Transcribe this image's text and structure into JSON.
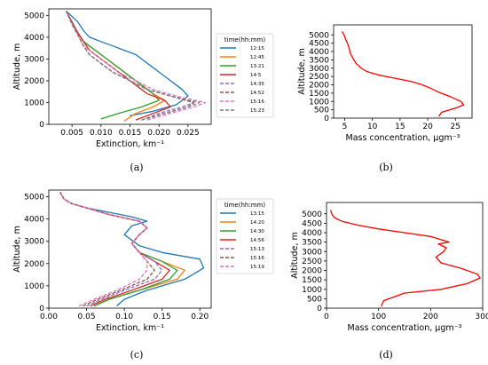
{
  "chart_data": [
    {
      "id": "a",
      "type": "line",
      "caption": "(a)",
      "xlabel": "Extinction, km⁻¹",
      "ylabel": "Altitude, m",
      "xlim": [
        0.001,
        0.029
      ],
      "ylim": [
        0,
        5300
      ],
      "xticks": [
        0.005,
        0.01,
        0.015,
        0.02,
        0.025
      ],
      "xtick_labels": [
        "0.005",
        "0.010",
        "0.015",
        "0.020",
        "0.025"
      ],
      "yticks": [
        0,
        1000,
        2000,
        3000,
        4000,
        5000
      ],
      "ytick_labels": [
        "0",
        "1000",
        "2000",
        "3000",
        "4000",
        "5000"
      ],
      "grid": false,
      "legend_title": "time(hh:mm)",
      "legend_placement": "right-outside",
      "series": [
        {
          "name": "12:15",
          "color": "#1f77b4",
          "dash": "solid",
          "x": [
            0.015,
            0.019,
            0.023,
            0.024,
            0.025,
            0.024,
            0.023,
            0.022,
            0.021,
            0.02,
            0.019,
            0.018,
            0.017,
            0.016,
            0.014,
            0.012,
            0.01,
            0.008,
            0.007,
            0.006,
            0.004
          ],
          "y": [
            400,
            600,
            900,
            1100,
            1300,
            1600,
            1800,
            2000,
            2200,
            2400,
            2600,
            2800,
            3000,
            3200,
            3400,
            3600,
            3800,
            4000,
            4300,
            4700,
            5200
          ]
        },
        {
          "name": "12:45",
          "color": "#ff7f0e",
          "dash": "solid",
          "x": [
            0.014,
            0.016,
            0.019,
            0.021,
            0.019,
            0.017,
            0.015,
            0.013,
            0.011,
            0.009,
            0.007,
            0.006,
            0.005,
            0.004
          ],
          "y": [
            150,
            500,
            800,
            1100,
            1400,
            1800,
            2200,
            2600,
            3000,
            3400,
            3800,
            4200,
            4700,
            5200
          ]
        },
        {
          "name": "13:21",
          "color": "#2ca02c",
          "dash": "solid",
          "x": [
            0.01,
            0.013,
            0.017,
            0.02,
            0.019,
            0.017,
            0.015,
            0.013,
            0.011,
            0.009,
            0.007,
            0.006,
            0.005,
            0.004
          ],
          "y": [
            250,
            500,
            800,
            1100,
            1400,
            1800,
            2200,
            2600,
            3000,
            3400,
            3800,
            4200,
            4700,
            5200
          ]
        },
        {
          "name": "14:5",
          "color": "#d62728",
          "dash": "solid",
          "x": [
            0.016,
            0.019,
            0.022,
            0.021,
            0.018,
            0.016,
            0.014,
            0.012,
            0.01,
            0.008,
            0.007,
            0.006,
            0.005,
            0.004
          ],
          "y": [
            200,
            500,
            800,
            1100,
            1400,
            1800,
            2200,
            2600,
            3000,
            3400,
            3800,
            4200,
            4700,
            5200
          ]
        },
        {
          "name": "14:35",
          "color": "#9467bd",
          "dash": "dashed",
          "x": [
            0.017,
            0.02,
            0.024,
            0.026,
            0.022,
            0.018,
            0.015,
            0.012,
            0.01,
            0.008,
            0.007,
            0.006,
            0.005,
            0.004
          ],
          "y": [
            200,
            500,
            800,
            1000,
            1300,
            1600,
            2000,
            2400,
            2800,
            3200,
            3600,
            4100,
            4600,
            5200
          ]
        },
        {
          "name": "14:52",
          "color": "#8c564b",
          "dash": "dashed",
          "x": [
            0.017,
            0.021,
            0.025,
            0.026,
            0.022,
            0.018,
            0.015,
            0.012,
            0.01,
            0.008,
            0.007,
            0.006,
            0.005,
            0.004
          ],
          "y": [
            200,
            500,
            800,
            1000,
            1300,
            1600,
            2000,
            2400,
            2800,
            3200,
            3600,
            4100,
            4600,
            5200
          ]
        },
        {
          "name": "15:16",
          "color": "#e377c2",
          "dash": "dashed",
          "x": [
            0.018,
            0.022,
            0.026,
            0.028,
            0.023,
            0.019,
            0.016,
            0.013,
            0.011,
            0.009,
            0.007,
            0.006,
            0.005,
            0.004
          ],
          "y": [
            200,
            500,
            800,
            1000,
            1300,
            1600,
            2000,
            2400,
            2800,
            3200,
            3600,
            4100,
            4600,
            5200
          ]
        },
        {
          "name": "15:23",
          "color": "#7f7f7f",
          "dash": "dashed",
          "x": [
            0.017,
            0.021,
            0.025,
            0.027,
            0.022,
            0.018,
            0.015,
            0.012,
            0.01,
            0.008,
            0.007,
            0.006,
            0.005,
            0.004
          ],
          "y": [
            200,
            500,
            800,
            1000,
            1300,
            1600,
            2000,
            2400,
            2800,
            3200,
            3600,
            4100,
            4600,
            5200
          ]
        }
      ]
    },
    {
      "id": "b",
      "type": "line",
      "caption": "(b)",
      "xlabel": "Mass concentration, μgm⁻³",
      "ylabel": "Altitude, m",
      "xlim": [
        3,
        28
      ],
      "ylim": [
        0,
        5600
      ],
      "xticks": [
        5,
        10,
        15,
        20,
        25
      ],
      "xtick_labels": [
        "5",
        "10",
        "15",
        "20",
        "25"
      ],
      "yticks": [
        0,
        500,
        1000,
        1500,
        2000,
        2500,
        3000,
        3500,
        4000,
        4500,
        5000
      ],
      "ytick_labels": [
        "0",
        "500",
        "1000",
        "1500",
        "2000",
        "2500",
        "3000",
        "3500",
        "4000",
        "4500",
        "5000"
      ],
      "grid": false,
      "series": [
        {
          "color": "#ff0000",
          "x": [
            22.0,
            22.5,
            25.0,
            26.5,
            26.0,
            24.0,
            22.0,
            20.5,
            19.0,
            17.0,
            14.0,
            11.0,
            9.0,
            8.0,
            7.0,
            6.5,
            6.0,
            5.8,
            5.5,
            5.2,
            5.0,
            4.8,
            4.5
          ],
          "y": [
            100,
            350,
            600,
            800,
            1000,
            1300,
            1550,
            1800,
            2000,
            2200,
            2400,
            2600,
            2800,
            3000,
            3300,
            3600,
            3900,
            4200,
            4500,
            4700,
            4900,
            5050,
            5200
          ]
        }
      ]
    },
    {
      "id": "c",
      "type": "line",
      "caption": "(c)",
      "xlabel": "Extinction, km⁻¹",
      "ylabel": "Altitude, m",
      "xlim": [
        0,
        0.215
      ],
      "ylim": [
        0,
        5300
      ],
      "xticks": [
        0.0,
        0.05,
        0.1,
        0.15,
        0.2
      ],
      "xtick_labels": [
        "0.00",
        "0.05",
        "0.10",
        "0.15",
        "0.20"
      ],
      "yticks": [
        0,
        1000,
        2000,
        3000,
        4000,
        5000
      ],
      "ytick_labels": [
        "0",
        "1000",
        "2000",
        "3000",
        "4000",
        "5000"
      ],
      "grid": false,
      "legend_title": "time(hh:mm)",
      "legend_placement": "right-outside",
      "series": [
        {
          "name": "13:15",
          "color": "#1f77b4",
          "dash": "solid",
          "x": [
            0.09,
            0.1,
            0.13,
            0.18,
            0.205,
            0.2,
            0.15,
            0.12,
            0.1,
            0.11,
            0.13,
            0.11,
            0.08,
            0.05,
            0.03,
            0.02,
            0.015
          ],
          "y": [
            100,
            400,
            800,
            1300,
            1800,
            2200,
            2500,
            2800,
            3300,
            3700,
            3900,
            4100,
            4300,
            4500,
            4700,
            4900,
            5200
          ]
        },
        {
          "name": "14:20",
          "color": "#ff7f0e",
          "dash": "solid",
          "x": [
            0.06,
            0.08,
            0.12,
            0.17,
            0.18,
            0.15,
            0.12,
            0.11,
            0.12,
            0.13,
            0.12,
            0.08,
            0.05,
            0.03,
            0.02,
            0.015
          ],
          "y": [
            100,
            400,
            800,
            1300,
            1700,
            2100,
            2500,
            2900,
            3300,
            3600,
            3900,
            4200,
            4500,
            4700,
            4900,
            5200
          ]
        },
        {
          "name": "14:30",
          "color": "#2ca02c",
          "dash": "solid",
          "x": [
            0.06,
            0.08,
            0.12,
            0.16,
            0.17,
            0.15,
            0.12,
            0.11,
            0.12,
            0.13,
            0.12,
            0.08,
            0.05,
            0.03,
            0.02,
            0.015
          ],
          "y": [
            100,
            400,
            800,
            1300,
            1700,
            2100,
            2500,
            2900,
            3300,
            3600,
            3900,
            4200,
            4500,
            4700,
            4900,
            5200
          ]
        },
        {
          "name": "14:56",
          "color": "#d62728",
          "dash": "solid",
          "x": [
            0.055,
            0.075,
            0.11,
            0.15,
            0.16,
            0.14,
            0.12,
            0.11,
            0.12,
            0.13,
            0.12,
            0.08,
            0.05,
            0.03,
            0.02,
            0.015
          ],
          "y": [
            100,
            400,
            800,
            1300,
            1700,
            2100,
            2500,
            2900,
            3300,
            3600,
            3900,
            4200,
            4500,
            4700,
            4900,
            5200
          ]
        },
        {
          "name": "15:13",
          "color": "#9467bd",
          "dash": "dashed",
          "x": [
            0.05,
            0.07,
            0.1,
            0.14,
            0.15,
            0.14,
            0.12,
            0.11,
            0.12,
            0.13,
            0.12,
            0.08,
            0.05,
            0.03,
            0.02,
            0.015
          ],
          "y": [
            100,
            400,
            800,
            1300,
            1700,
            2100,
            2500,
            2900,
            3300,
            3600,
            3900,
            4200,
            4500,
            4700,
            4900,
            5200
          ]
        },
        {
          "name": "15:16",
          "color": "#8c564b",
          "dash": "dashed",
          "x": [
            0.045,
            0.065,
            0.095,
            0.13,
            0.14,
            0.13,
            0.12,
            0.11,
            0.12,
            0.13,
            0.12,
            0.08,
            0.05,
            0.03,
            0.02,
            0.015
          ],
          "y": [
            100,
            400,
            800,
            1300,
            1700,
            2100,
            2500,
            2900,
            3300,
            3600,
            3900,
            4200,
            4500,
            4700,
            4900,
            5200
          ]
        },
        {
          "name": "15:19",
          "color": "#e377c2",
          "dash": "dashed",
          "x": [
            0.04,
            0.06,
            0.09,
            0.12,
            0.13,
            0.13,
            0.12,
            0.11,
            0.12,
            0.13,
            0.12,
            0.08,
            0.05,
            0.03,
            0.02,
            0.015
          ],
          "y": [
            100,
            400,
            800,
            1300,
            1700,
            2100,
            2500,
            2900,
            3300,
            3600,
            3900,
            4200,
            4500,
            4700,
            4900,
            5200
          ]
        }
      ]
    },
    {
      "id": "d",
      "type": "line",
      "caption": "(d)",
      "xlabel": "Mass concentration, μgm⁻³",
      "ylabel": "Altitude, m",
      "xlim": [
        0,
        300
      ],
      "ylim": [
        0,
        5600
      ],
      "xticks": [
        0,
        100,
        200,
        300
      ],
      "xtick_labels": [
        "0",
        "100",
        "200",
        "300"
      ],
      "yticks": [
        0,
        500,
        1000,
        1500,
        2000,
        2500,
        3000,
        3500,
        4000,
        4500,
        5000
      ],
      "ytick_labels": [
        "0",
        "500",
        "1000",
        "1500",
        "2000",
        "2500",
        "3000",
        "3500",
        "4000",
        "4500",
        "5000"
      ],
      "grid": false,
      "series": [
        {
          "color": "#ff0000",
          "x": [
            105,
            110,
            150,
            220,
            270,
            295,
            290,
            260,
            220,
            210,
            225,
            230,
            215,
            235,
            200,
            150,
            100,
            60,
            30,
            15,
            10,
            8
          ],
          "y": [
            100,
            400,
            800,
            1000,
            1300,
            1600,
            1800,
            2100,
            2400,
            2700,
            3000,
            3200,
            3400,
            3500,
            3800,
            4000,
            4200,
            4400,
            4600,
            4800,
            5000,
            5200
          ]
        }
      ]
    }
  ]
}
